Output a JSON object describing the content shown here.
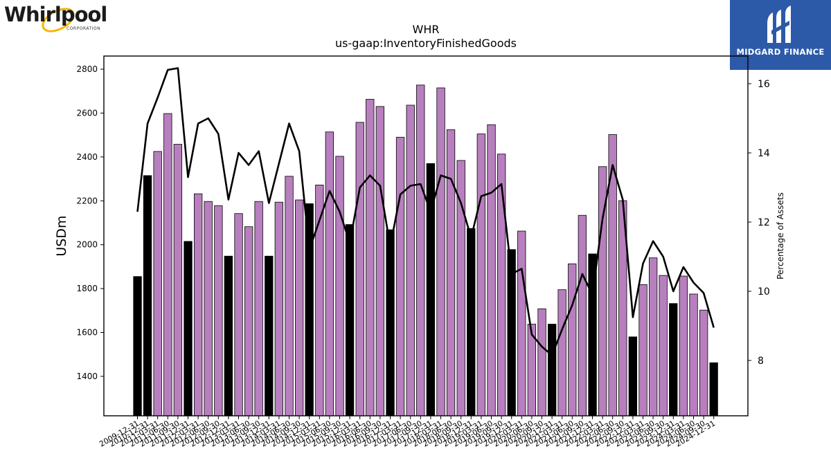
{
  "branding": {
    "company_logo_text": "Whirlpool",
    "company_logo_subtext": "CORPORATION",
    "publisher_name": "MIDGARD FINANCE"
  },
  "chart_data": {
    "type": "bar",
    "title": "WHR",
    "subtitle": "us-gaap:InventoryFinishedGoods",
    "ylabel": "USDm",
    "ylabel_right": "Percentage of Assets",
    "ylim": [
      1220,
      2860
    ],
    "ylim_right": [
      6.4,
      16.8
    ],
    "yticks": [
      1400,
      1600,
      1800,
      2000,
      2200,
      2400,
      2600,
      2800
    ],
    "yticks_right": [
      8,
      10,
      12,
      14,
      16
    ],
    "colors": {
      "annual_bar": "#000000",
      "quarter_bar": "#b77fbd",
      "line": "#000000"
    },
    "categories": [
      "2009-12-31",
      "2010-12-31",
      "2011-03-31",
      "2011-06-30",
      "2011-09-30",
      "2011-12-31",
      "2012-03-31",
      "2012-06-30",
      "2012-09-30",
      "2012-12-31",
      "2013-03-31",
      "2013-06-30",
      "2013-09-30",
      "2013-12-31",
      "2014-03-31",
      "2014-06-30",
      "2014-09-30",
      "2014-12-31",
      "2015-03-31",
      "2015-06-30",
      "2015-09-30",
      "2015-12-31",
      "2016-03-31",
      "2016-06-30",
      "2016-09-30",
      "2016-12-31",
      "2017-03-31",
      "2017-06-30",
      "2017-09-30",
      "2017-12-31",
      "2018-03-31",
      "2018-06-30",
      "2018-09-30",
      "2018-12-31",
      "2019-03-31",
      "2019-06-30",
      "2019-09-30",
      "2019-12-31",
      "2020-03-31",
      "2020-06-30",
      "2020-09-30",
      "2020-12-31",
      "2021-03-31",
      "2021-06-30",
      "2021-09-30",
      "2021-12-31",
      "2022-03-31",
      "2022-06-30",
      "2022-09-30",
      "2022-12-31",
      "2023-03-31",
      "2023-06-30",
      "2023-09-30",
      "2023-12-31",
      "2024-03-31",
      "2024-06-30",
      "2024-09-30",
      "2024-12-31"
    ],
    "series": [
      {
        "values": [
          1855,
          2315,
          2425,
          2598,
          2458,
          2015,
          2232,
          2197,
          2178,
          1948,
          2142,
          2082,
          2197,
          1948,
          2194,
          2312,
          2204,
          2187,
          2272,
          2514,
          2403,
          2092,
          2558,
          2663,
          2630,
          2068,
          2490,
          2636,
          2728,
          2370,
          2715,
          2524,
          2384,
          2074,
          2505,
          2547,
          2413,
          1978,
          2062,
          1638,
          1708,
          1638,
          1795,
          1913,
          2134,
          1958,
          2356,
          2502,
          2201,
          1580,
          1818,
          1940,
          1860,
          1732,
          1857,
          1775,
          1702,
          1462
        ],
        "annual_flags": [
          1,
          1,
          0,
          0,
          0,
          1,
          0,
          0,
          0,
          1,
          0,
          0,
          0,
          1,
          0,
          0,
          0,
          1,
          0,
          0,
          0,
          1,
          0,
          0,
          0,
          1,
          0,
          0,
          0,
          1,
          0,
          0,
          0,
          1,
          0,
          0,
          0,
          1,
          0,
          0,
          0,
          1,
          0,
          0,
          0,
          1,
          0,
          0,
          0,
          1,
          0,
          0,
          0,
          1,
          0,
          0,
          0,
          1
        ]
      },
      {
        "axis": "right",
        "values": [
          12.3,
          14.85,
          15.6,
          16.4,
          16.45,
          13.3,
          14.85,
          15.0,
          14.55,
          12.65,
          14.0,
          13.65,
          14.05,
          12.55,
          13.7,
          14.85,
          14.05,
          11.2,
          12.05,
          12.9,
          12.3,
          11.4,
          13.0,
          13.35,
          13.05,
          11.3,
          12.8,
          13.05,
          13.1,
          12.3,
          13.35,
          13.25,
          12.55,
          11.55,
          12.75,
          12.85,
          13.1,
          10.5,
          10.65,
          8.75,
          8.4,
          8.15,
          8.9,
          9.6,
          10.5,
          9.9,
          12.1,
          13.65,
          12.65,
          9.25,
          10.8,
          11.45,
          11.0,
          10.0,
          10.7,
          10.25,
          9.95,
          8.95
        ]
      }
    ]
  }
}
